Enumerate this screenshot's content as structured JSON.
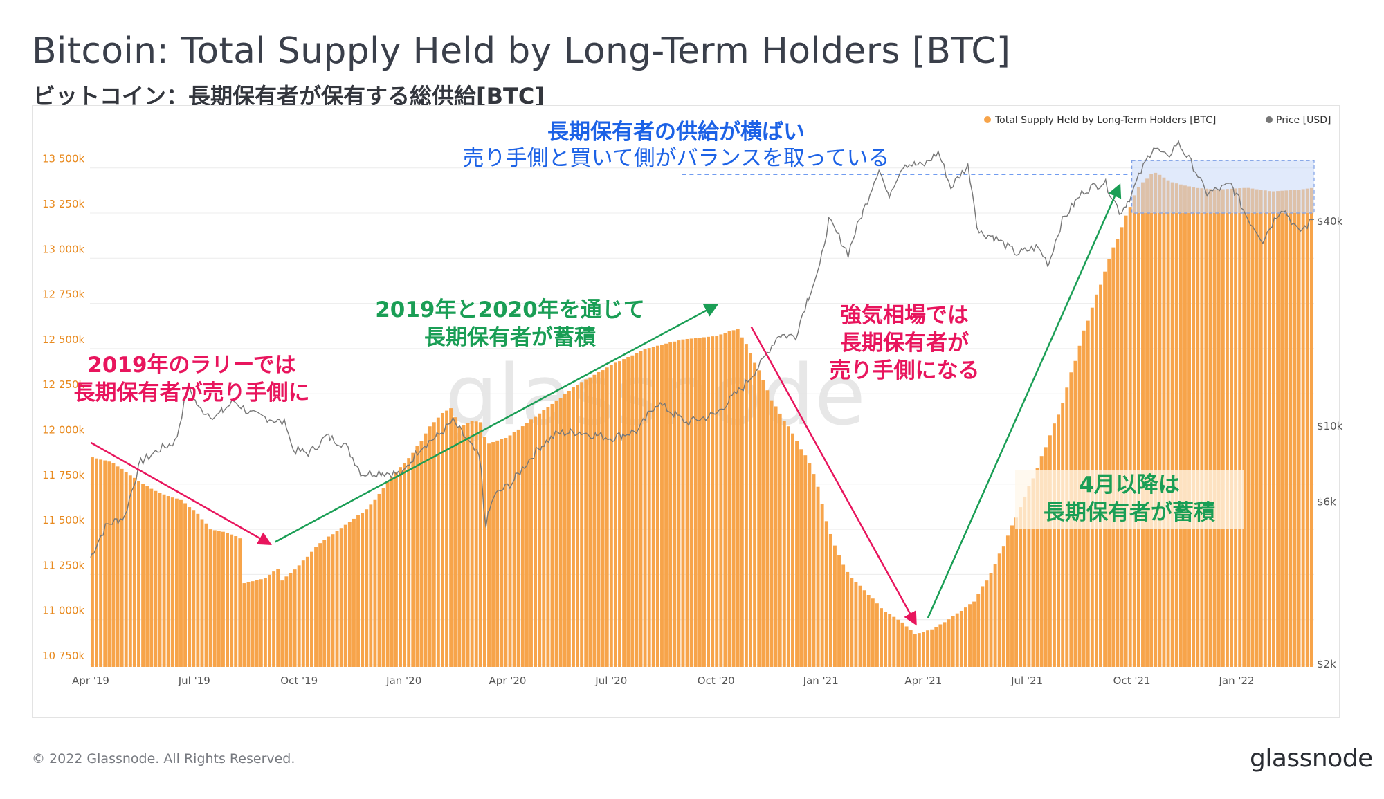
{
  "header": {
    "title": "Bitcoin: Total Supply Held by Long-Term Holders [BTC]",
    "subtitle": "ビットコイン：長期保有者が保有する総供給[BTC]"
  },
  "footer": {
    "copyright": "© 2022 Glassnode. All Rights Reserved.",
    "logo": "glassnode"
  },
  "watermark": "glassnode",
  "colors": {
    "supply": "#f7a44a",
    "price": "#777777",
    "green": "#1a9e55",
    "pink": "#e8155d",
    "blue": "#1c62e6",
    "highlight": "#c9d8f7"
  },
  "chart_data": {
    "type": "bar",
    "legend_position": "top-right",
    "grid": true,
    "series": [
      {
        "name": "Total Supply Held by Long-Term Holders [BTC]",
        "type": "bar",
        "axis": "left",
        "points": [
          [
            "2019-04-01",
            11900000
          ],
          [
            "2019-04-20",
            11870000
          ],
          [
            "2019-05-10",
            11780000
          ],
          [
            "2019-05-25",
            11720000
          ],
          [
            "2019-06-05",
            11690000
          ],
          [
            "2019-06-20",
            11660000
          ],
          [
            "2019-07-05",
            11580000
          ],
          [
            "2019-07-15",
            11500000
          ],
          [
            "2019-07-31",
            11480000
          ],
          [
            "2019-08-10",
            11450000
          ],
          [
            "2019-08-13",
            11200000
          ],
          [
            "2019-09-01",
            11230000
          ],
          [
            "2019-09-12",
            11280000
          ],
          [
            "2019-09-13",
            11200000
          ],
          [
            "2019-10-01",
            11300000
          ],
          [
            "2019-10-20",
            11430000
          ],
          [
            "2019-11-10",
            11520000
          ],
          [
            "2019-12-01",
            11620000
          ],
          [
            "2019-12-20",
            11780000
          ],
          [
            "2020-01-10",
            11930000
          ],
          [
            "2020-01-25",
            12080000
          ],
          [
            "2020-02-05",
            12150000
          ],
          [
            "2020-02-14",
            12180000
          ],
          [
            "2020-02-16",
            12060000
          ],
          [
            "2020-03-01",
            12100000
          ],
          [
            "2020-03-10",
            12090000
          ],
          [
            "2020-03-13",
            11970000
          ],
          [
            "2020-04-01",
            12010000
          ],
          [
            "2020-05-01",
            12150000
          ],
          [
            "2020-06-01",
            12300000
          ],
          [
            "2020-07-01",
            12410000
          ],
          [
            "2020-08-01",
            12500000
          ],
          [
            "2020-09-01",
            12550000
          ],
          [
            "2020-10-01",
            12570000
          ],
          [
            "2020-10-20",
            12610000
          ],
          [
            "2020-10-30",
            12490000
          ],
          [
            "2020-11-20",
            12200000
          ],
          [
            "2020-12-10",
            12000000
          ],
          [
            "2020-12-25",
            11830000
          ],
          [
            "2021-01-10",
            11450000
          ],
          [
            "2021-01-25",
            11250000
          ],
          [
            "2021-02-10",
            11150000
          ],
          [
            "2021-02-25",
            11050000
          ],
          [
            "2021-03-10",
            11000000
          ],
          [
            "2021-03-25",
            10920000
          ],
          [
            "2021-04-10",
            10950000
          ],
          [
            "2021-04-30",
            11030000
          ],
          [
            "2021-05-15",
            11100000
          ],
          [
            "2021-06-01",
            11280000
          ],
          [
            "2021-06-20",
            11550000
          ],
          [
            "2021-07-10",
            11840000
          ],
          [
            "2021-08-01",
            12200000
          ],
          [
            "2021-08-20",
            12600000
          ],
          [
            "2021-09-10",
            12980000
          ],
          [
            "2021-09-25",
            13220000
          ],
          [
            "2021-10-05",
            13380000
          ],
          [
            "2021-10-20",
            13480000
          ],
          [
            "2021-11-05",
            13420000
          ],
          [
            "2021-11-25",
            13390000
          ],
          [
            "2021-12-15",
            13380000
          ],
          [
            "2022-01-10",
            13390000
          ],
          [
            "2022-02-01",
            13370000
          ],
          [
            "2022-02-25",
            13380000
          ],
          [
            "2022-03-10",
            13390000
          ]
        ]
      },
      {
        "name": "Price [USD]",
        "type": "line",
        "axis": "right",
        "points": [
          [
            "2019-04-01",
            4100
          ],
          [
            "2019-04-15",
            5100
          ],
          [
            "2019-05-01",
            5400
          ],
          [
            "2019-05-15",
            7800
          ],
          [
            "2019-05-31",
            8500
          ],
          [
            "2019-06-15",
            9000
          ],
          [
            "2019-06-26",
            13000
          ],
          [
            "2019-07-05",
            11200
          ],
          [
            "2019-07-20",
            10600
          ],
          [
            "2019-08-05",
            11800
          ],
          [
            "2019-08-20",
            10800
          ],
          [
            "2019-09-05",
            10500
          ],
          [
            "2019-09-20",
            10100
          ],
          [
            "2019-09-25",
            8500
          ],
          [
            "2019-10-10",
            8300
          ],
          [
            "2019-10-25",
            9300
          ],
          [
            "2019-11-10",
            8800
          ],
          [
            "2019-11-25",
            7200
          ],
          [
            "2019-12-10",
            7300
          ],
          [
            "2019-12-31",
            7200
          ],
          [
            "2020-01-15",
            8600
          ],
          [
            "2020-02-01",
            9400
          ],
          [
            "2020-02-13",
            10300
          ],
          [
            "2020-03-01",
            8600
          ],
          [
            "2020-03-08",
            8000
          ],
          [
            "2020-03-12",
            5000
          ],
          [
            "2020-03-20",
            6200
          ],
          [
            "2020-04-05",
            6800
          ],
          [
            "2020-04-30",
            8700
          ],
          [
            "2020-05-15",
            9500
          ],
          [
            "2020-06-01",
            9600
          ],
          [
            "2020-07-01",
            9200
          ],
          [
            "2020-07-25",
            9700
          ],
          [
            "2020-08-10",
            11700
          ],
          [
            "2020-09-05",
            10200
          ],
          [
            "2020-10-01",
            10800
          ],
          [
            "2020-10-25",
            13000
          ],
          [
            "2020-11-10",
            15300
          ],
          [
            "2020-11-25",
            18500
          ],
          [
            "2020-12-10",
            18300
          ],
          [
            "2020-12-31",
            29000
          ],
          [
            "2021-01-08",
            40000
          ],
          [
            "2021-01-25",
            32000
          ],
          [
            "2021-02-10",
            45000
          ],
          [
            "2021-02-21",
            57000
          ],
          [
            "2021-03-01",
            47000
          ],
          [
            "2021-03-15",
            59000
          ],
          [
            "2021-04-01",
            58000
          ],
          [
            "2021-04-14",
            63500
          ],
          [
            "2021-04-25",
            50000
          ],
          [
            "2021-05-10",
            58000
          ],
          [
            "2021-05-19",
            37000
          ],
          [
            "2021-06-01",
            36000
          ],
          [
            "2021-06-22",
            32000
          ],
          [
            "2021-07-10",
            33500
          ],
          [
            "2021-07-20",
            29800
          ],
          [
            "2021-08-01",
            40000
          ],
          [
            "2021-08-20",
            49000
          ],
          [
            "2021-09-07",
            52000
          ],
          [
            "2021-09-21",
            42000
          ],
          [
            "2021-10-01",
            48000
          ],
          [
            "2021-10-20",
            66000
          ],
          [
            "2021-11-01",
            61000
          ],
          [
            "2021-11-10",
            68000
          ],
          [
            "2021-11-25",
            57000
          ],
          [
            "2021-12-05",
            48000
          ],
          [
            "2021-12-27",
            51000
          ],
          [
            "2022-01-10",
            41000
          ],
          [
            "2022-01-24",
            35000
          ],
          [
            "2022-02-10",
            44000
          ],
          [
            "2022-02-24",
            37000
          ],
          [
            "2022-03-05",
            39000
          ],
          [
            "2022-03-10",
            41000
          ]
        ]
      }
    ],
    "y_left": {
      "ticks": [
        10750000,
        11000000,
        11250000,
        11500000,
        11750000,
        12000000,
        12250000,
        12500000,
        12750000,
        13000000,
        13250000,
        13500000
      ],
      "tick_labels": [
        "10 750k",
        "11 000k",
        "11 250k",
        "11 500k",
        "11 750k",
        "12 000k",
        "12 250k",
        "12 500k",
        "12 750k",
        "13 000k",
        "13 250k",
        "13 500k"
      ]
    },
    "y_right": {
      "scale": "log",
      "ticks": [
        2000,
        6000,
        10000,
        40000
      ],
      "tick_labels": [
        "$2k",
        "$6k",
        "$10k",
        "$40k"
      ]
    },
    "x_axis": {
      "start": "2019-04-01",
      "end": "2022-03-10",
      "ticks": [
        "2019-04-01",
        "2019-07-01",
        "2019-10-01",
        "2020-01-01",
        "2020-04-01",
        "2020-07-01",
        "2020-10-01",
        "2021-01-01",
        "2021-04-01",
        "2021-07-01",
        "2021-10-01",
        "2022-01-01"
      ],
      "tick_labels": [
        "Apr '19",
        "Jul '19",
        "Oct '19",
        "Jan '20",
        "Apr '20",
        "Jul '20",
        "Oct '20",
        "Jan '21",
        "Apr '21",
        "Jul '21",
        "Oct '21",
        "Jan '22"
      ]
    },
    "highlight_region": {
      "x_from": "2021-10-01",
      "x_to": "2022-03-10",
      "y_from": 13250000,
      "y_to": 13540000
    },
    "reference_line": {
      "y": 13465000,
      "x_from": "2020-09-01",
      "x_to": "2021-10-01",
      "style": "dashed"
    },
    "annotations": [
      {
        "id": "rally2019",
        "color": "pink",
        "lines": [
          "2019年のラリーでは",
          "長期保有者が売り手側に"
        ],
        "arrow": {
          "from": [
            "2019-04-01",
            11980000
          ],
          "to": [
            "2019-09-05",
            11420000
          ]
        }
      },
      {
        "id": "accum2019_2020",
        "color": "green",
        "lines": [
          "2019年と2020年を通じて",
          "長期保有者が蓄積"
        ],
        "arrow": {
          "from": [
            "2019-09-10",
            11430000
          ],
          "to": [
            "2020-10-01",
            12740000
          ]
        }
      },
      {
        "id": "bull",
        "color": "pink",
        "lines": [
          "強気相場では",
          "長期保有者が",
          "売り手側になる"
        ],
        "arrow": {
          "from": [
            "2020-11-01",
            12620000
          ],
          "to": [
            "2021-03-25",
            10980000
          ]
        }
      },
      {
        "id": "since_april",
        "color": "green",
        "boxed": true,
        "lines": [
          "4月以降は",
          "長期保有者が蓄積"
        ],
        "arrow": {
          "from": [
            "2021-04-05",
            11010000
          ],
          "to": [
            "2021-09-20",
            13400000
          ]
        }
      },
      {
        "id": "flat",
        "color": "blue",
        "lines": [
          "長期保有者の供給が横ばい",
          "売り手側と買いて側がバランスを取っている"
        ]
      }
    ]
  }
}
